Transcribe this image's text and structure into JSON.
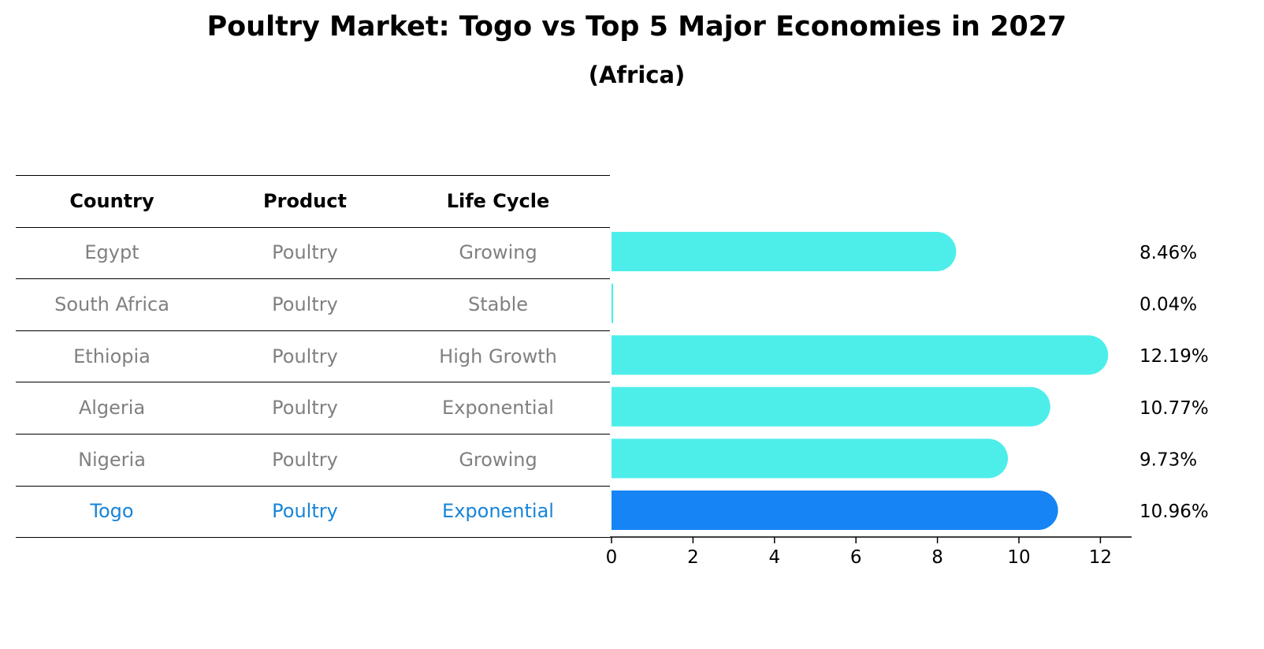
{
  "title": "Poultry Market: Togo vs Top 5 Major Economies in 2027",
  "subtitle": "(Africa)",
  "table": {
    "headers": [
      "Country",
      "Product",
      "Life Cycle"
    ],
    "rows": [
      [
        "Egypt",
        "Poultry",
        "Growing"
      ],
      [
        "South Africa",
        "Poultry",
        "Stable"
      ],
      [
        "Ethiopia",
        "Poultry",
        "High Growth"
      ],
      [
        "Algeria",
        "Poultry",
        "Exponential"
      ],
      [
        "Nigeria",
        "Poultry",
        "Growing"
      ],
      [
        "Togo",
        "Poultry",
        "Exponential"
      ]
    ]
  },
  "chart_data": {
    "type": "bar",
    "orientation": "horizontal",
    "categories": [
      "Egypt",
      "South Africa",
      "Ethiopia",
      "Algeria",
      "Nigeria",
      "Togo"
    ],
    "values": [
      8.46,
      0.04,
      12.19,
      10.77,
      9.73,
      10.96
    ],
    "value_labels": [
      "8.46%",
      "0.04%",
      "12.19%",
      "10.77%",
      "9.73%",
      "10.96%"
    ],
    "highlight_index": 5,
    "xlim": [
      0,
      12.8
    ],
    "xticks": [
      0,
      2,
      4,
      6,
      8,
      10,
      12
    ],
    "xtick_labels": [
      "0",
      "2",
      "4",
      "6",
      "8",
      "10",
      "12"
    ],
    "grid": false,
    "colors": {
      "bar": "#4deeea",
      "highlight": "#1784f5",
      "highlight_text": "#1784d8",
      "muted_text": "#808080"
    }
  }
}
